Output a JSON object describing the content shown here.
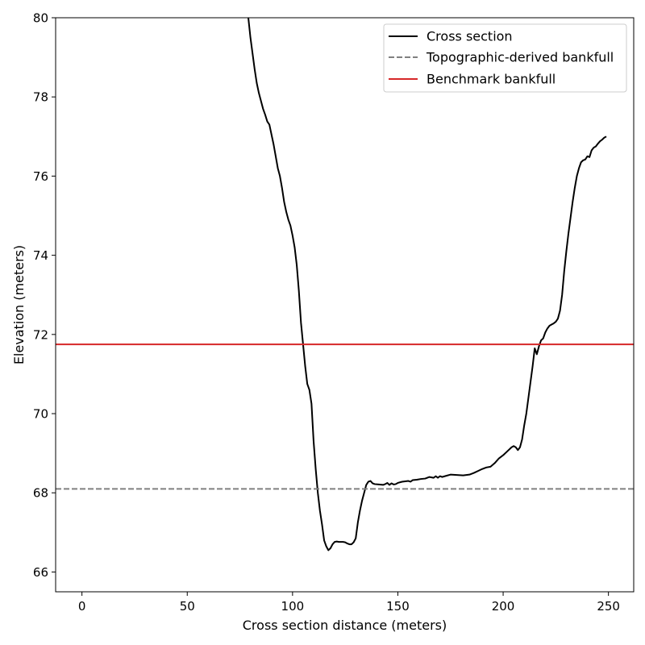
{
  "chart_data": {
    "type": "line",
    "title": "",
    "xlabel": "Cross section distance (meters)",
    "ylabel": "Elevation (meters)",
    "xlim": [
      -12.5,
      262
    ],
    "ylim": [
      65.5,
      80
    ],
    "x_ticks": [
      0,
      50,
      100,
      150,
      200,
      250
    ],
    "y_ticks": [
      66,
      68,
      70,
      72,
      74,
      76,
      78,
      80
    ],
    "grid": false,
    "legend_position": "top-right",
    "series": [
      {
        "name": "Cross section",
        "color": "#000000",
        "style": "solid",
        "points": [
          [
            79,
            80.0
          ],
          [
            80,
            79.5
          ],
          [
            81,
            79.1
          ],
          [
            82,
            78.7
          ],
          [
            83,
            78.35
          ],
          [
            84,
            78.1
          ],
          [
            85,
            77.9
          ],
          [
            86,
            77.7
          ],
          [
            87,
            77.55
          ],
          [
            88,
            77.38
          ],
          [
            89,
            77.3
          ],
          [
            90,
            77.05
          ],
          [
            91,
            76.8
          ],
          [
            92,
            76.5
          ],
          [
            93,
            76.2
          ],
          [
            94,
            76.0
          ],
          [
            95,
            75.7
          ],
          [
            96,
            75.35
          ],
          [
            97,
            75.1
          ],
          [
            98,
            74.9
          ],
          [
            99,
            74.75
          ],
          [
            100,
            74.5
          ],
          [
            101,
            74.2
          ],
          [
            102,
            73.75
          ],
          [
            103,
            73.1
          ],
          [
            104,
            72.3
          ],
          [
            105,
            71.75
          ],
          [
            106,
            71.2
          ],
          [
            107,
            70.75
          ],
          [
            108,
            70.6
          ],
          [
            109,
            70.25
          ],
          [
            110,
            69.3
          ],
          [
            111,
            68.6
          ],
          [
            112,
            68.0
          ],
          [
            113,
            67.55
          ],
          [
            114,
            67.2
          ],
          [
            115,
            66.8
          ],
          [
            116,
            66.65
          ],
          [
            117,
            66.55
          ],
          [
            118,
            66.6
          ],
          [
            119,
            66.7
          ],
          [
            120,
            66.76
          ],
          [
            121,
            66.77
          ],
          [
            122,
            66.76
          ],
          [
            124,
            66.76
          ],
          [
            125,
            66.75
          ],
          [
            126,
            66.72
          ],
          [
            127,
            66.7
          ],
          [
            128,
            66.7
          ],
          [
            129,
            66.75
          ],
          [
            130,
            66.85
          ],
          [
            131,
            67.25
          ],
          [
            132,
            67.55
          ],
          [
            133,
            67.8
          ],
          [
            134,
            68.0
          ],
          [
            135,
            68.2
          ],
          [
            136,
            68.28
          ],
          [
            137,
            68.3
          ],
          [
            138,
            68.24
          ],
          [
            139,
            68.22
          ],
          [
            141,
            68.21
          ],
          [
            143,
            68.2
          ],
          [
            144,
            68.22
          ],
          [
            145,
            68.25
          ],
          [
            146,
            68.2
          ],
          [
            147,
            68.24
          ],
          [
            148,
            68.21
          ],
          [
            149,
            68.22
          ],
          [
            150,
            68.25
          ],
          [
            152,
            68.28
          ],
          [
            155,
            68.3
          ],
          [
            156,
            68.28
          ],
          [
            157,
            68.32
          ],
          [
            159,
            68.33
          ],
          [
            161,
            68.35
          ],
          [
            163,
            68.36
          ],
          [
            165,
            68.4
          ],
          [
            167,
            68.38
          ],
          [
            168,
            68.42
          ],
          [
            169,
            68.38
          ],
          [
            170,
            68.42
          ],
          [
            171,
            68.4
          ],
          [
            173,
            68.43
          ],
          [
            175,
            68.46
          ],
          [
            178,
            68.45
          ],
          [
            181,
            68.44
          ],
          [
            184,
            68.46
          ],
          [
            186,
            68.5
          ],
          [
            188,
            68.55
          ],
          [
            190,
            68.6
          ],
          [
            192,
            68.64
          ],
          [
            194,
            68.66
          ],
          [
            196,
            68.75
          ],
          [
            198,
            68.87
          ],
          [
            200,
            68.95
          ],
          [
            202,
            69.05
          ],
          [
            204,
            69.15
          ],
          [
            205,
            69.18
          ],
          [
            206,
            69.15
          ],
          [
            207,
            69.08
          ],
          [
            208,
            69.15
          ],
          [
            209,
            69.35
          ],
          [
            210,
            69.7
          ],
          [
            211,
            70.0
          ],
          [
            212,
            70.4
          ],
          [
            213,
            70.8
          ],
          [
            214,
            71.2
          ],
          [
            215,
            71.65
          ],
          [
            216,
            71.5
          ],
          [
            217,
            71.7
          ],
          [
            218,
            71.85
          ],
          [
            219,
            71.9
          ],
          [
            220,
            72.05
          ],
          [
            221,
            72.15
          ],
          [
            222,
            72.22
          ],
          [
            223,
            72.25
          ],
          [
            224,
            72.28
          ],
          [
            225,
            72.32
          ],
          [
            226,
            72.4
          ],
          [
            227,
            72.6
          ],
          [
            228,
            73.0
          ],
          [
            229,
            73.6
          ],
          [
            230,
            74.1
          ],
          [
            231,
            74.55
          ],
          [
            232,
            74.95
          ],
          [
            233,
            75.35
          ],
          [
            234,
            75.7
          ],
          [
            235,
            76.0
          ],
          [
            236,
            76.2
          ],
          [
            237,
            76.35
          ],
          [
            238,
            76.4
          ],
          [
            239,
            76.42
          ],
          [
            240,
            76.5
          ],
          [
            241,
            76.48
          ],
          [
            242,
            76.65
          ],
          [
            243,
            76.72
          ],
          [
            244,
            76.75
          ],
          [
            245,
            76.82
          ],
          [
            246,
            76.88
          ],
          [
            247,
            76.92
          ],
          [
            248,
            76.97
          ],
          [
            249,
            77.0
          ]
        ]
      },
      {
        "name": "Topographic-derived bankfull",
        "color": "#808080",
        "style": "dashed",
        "y": 68.1
      },
      {
        "name": "Benchmark bankfull",
        "color": "#d62728",
        "style": "solid",
        "y": 71.75
      }
    ]
  }
}
